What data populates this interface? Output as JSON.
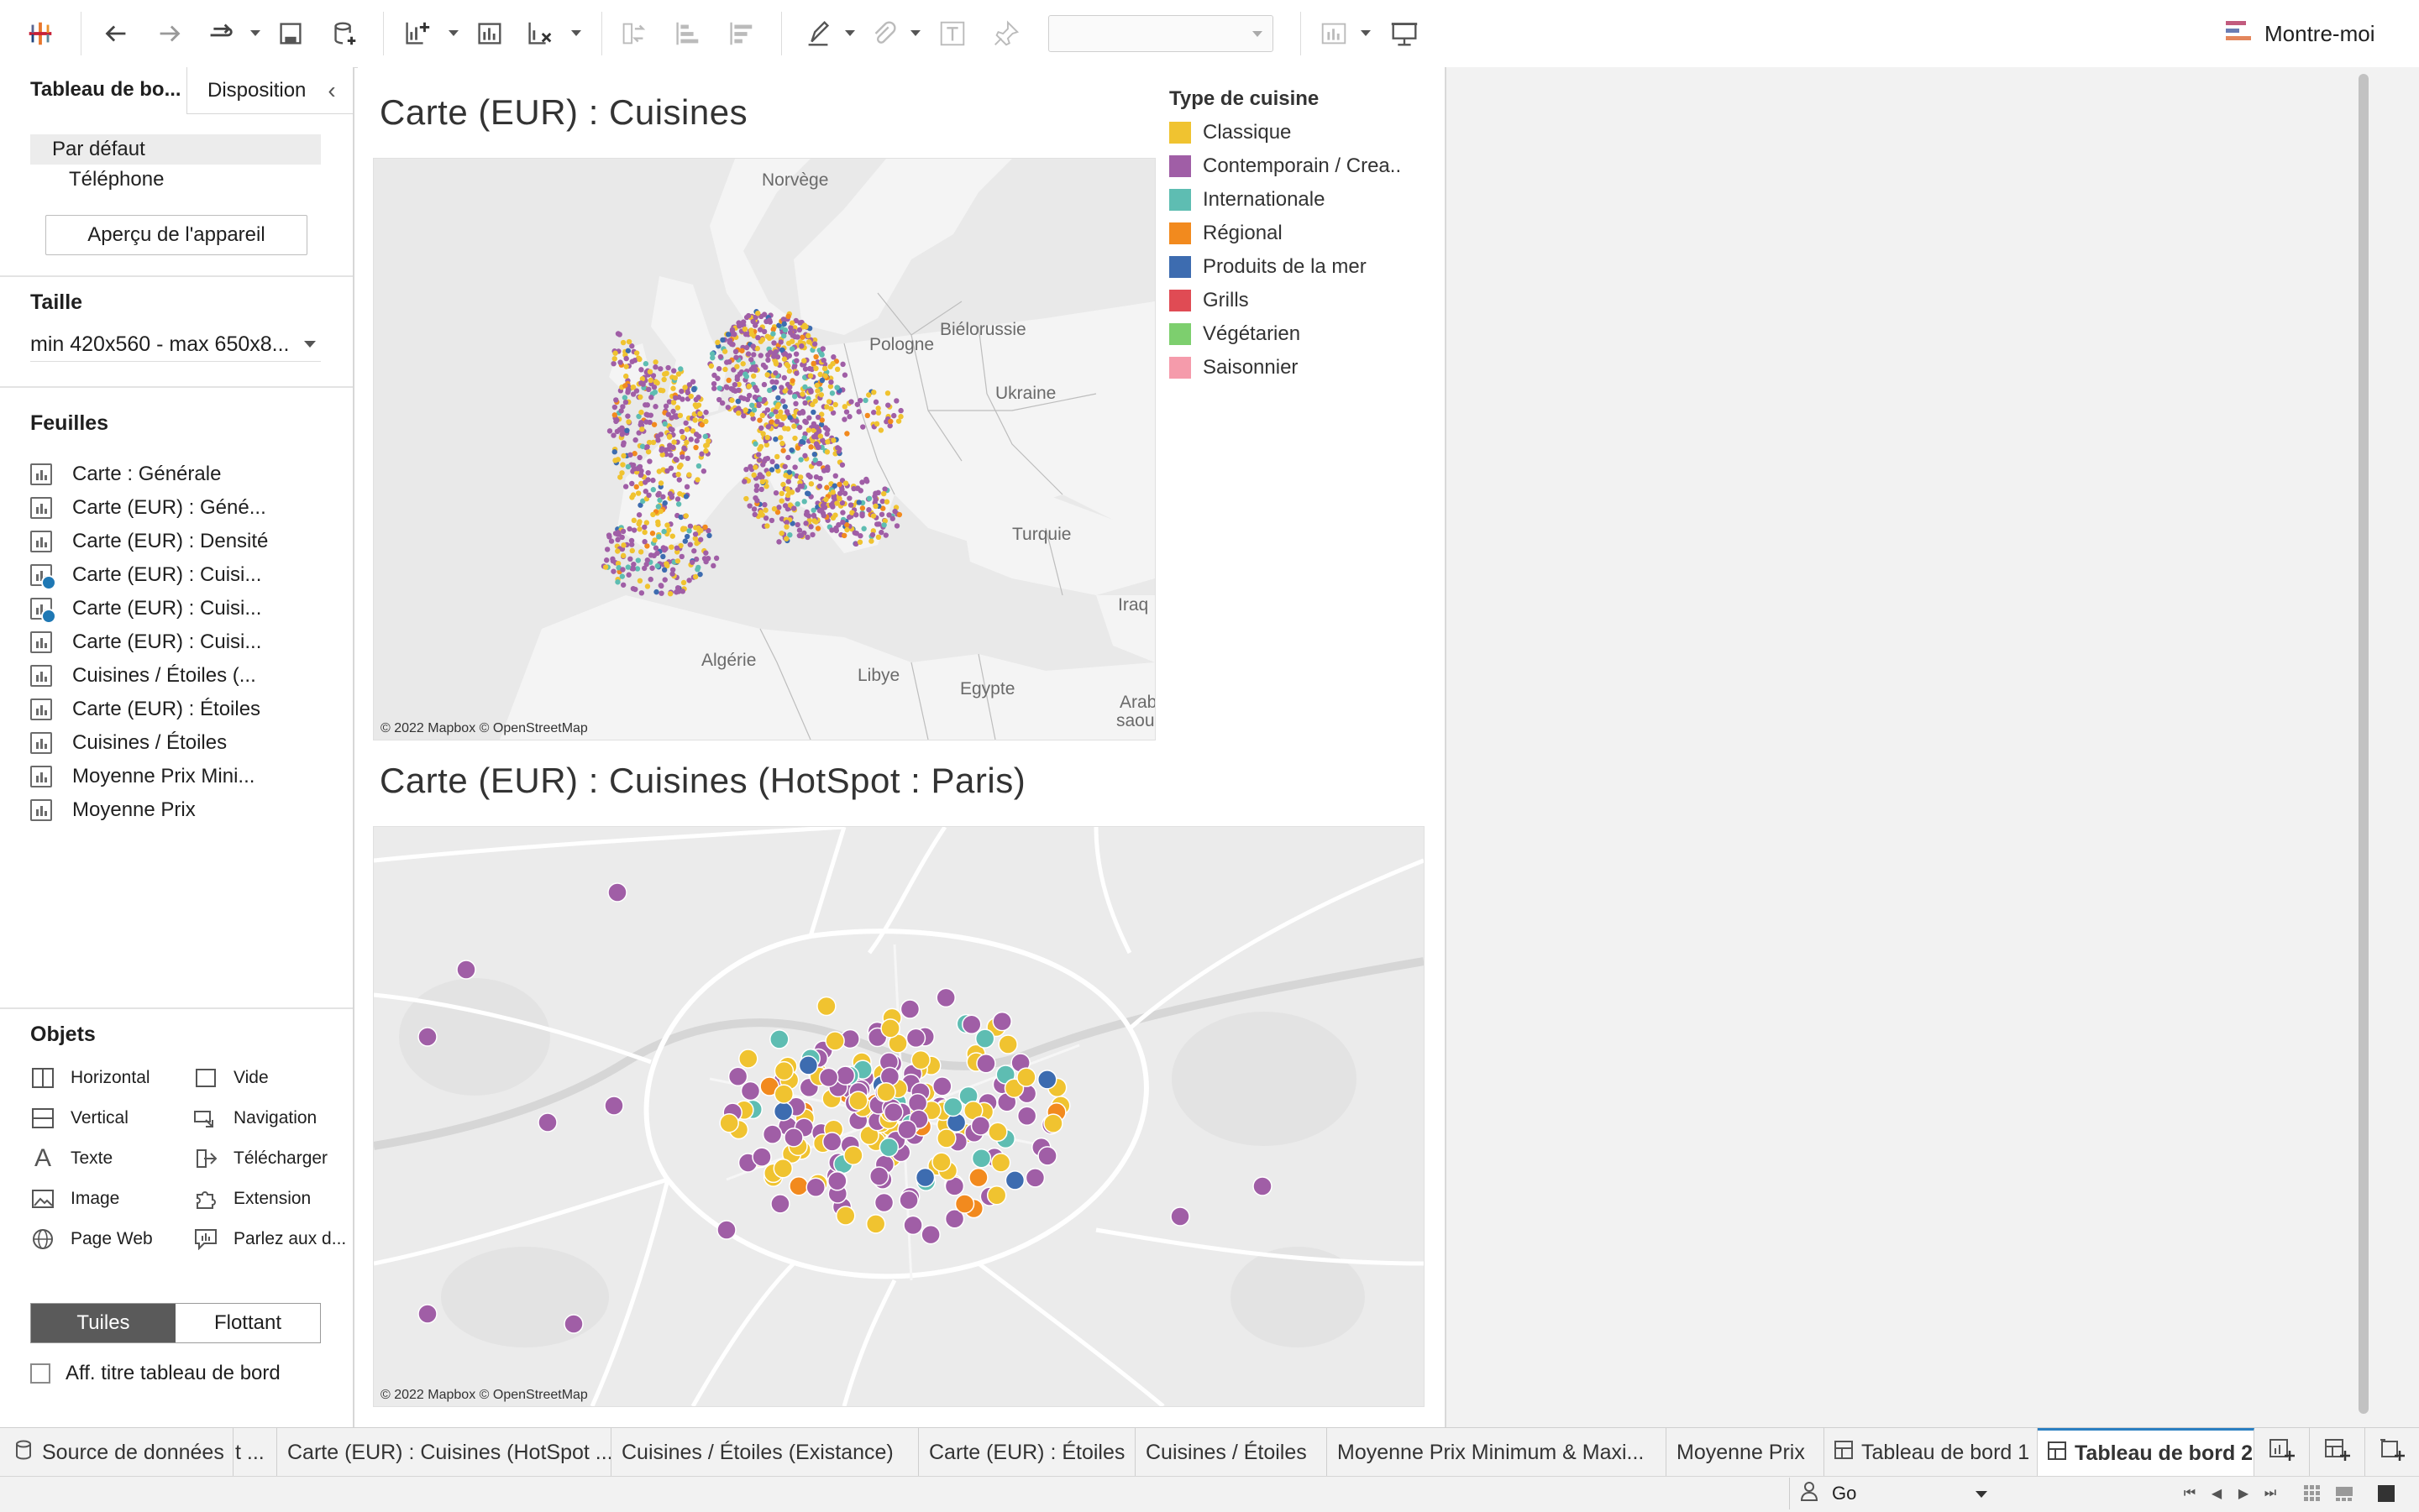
{
  "toolbar": {
    "show_me_label": "Montre-moi",
    "icons": [
      "tableau-logo-icon",
      "undo-icon",
      "redo-icon",
      "replay-icon",
      "save-icon",
      "new-datasource-icon",
      "new-sheet-icon",
      "duplicate-sheet-icon",
      "clear-sheet-icon",
      "swap-icon",
      "sort-asc-icon",
      "sort-desc-icon",
      "highlight-icon",
      "attach-icon",
      "text-label-icon",
      "pin-icon",
      "show-cards-icon",
      "presentation-icon"
    ]
  },
  "left_panel": {
    "tab_dashboard": "Tableau de bo...",
    "tab_layout": "Disposition",
    "devices": [
      {
        "label": "Par défaut",
        "selected": true
      },
      {
        "label": "Téléphone",
        "selected": false
      }
    ],
    "device_preview_button": "Aperçu de l'appareil",
    "size_title": "Taille",
    "size_value": "min 420x560 - max 650x8...",
    "sheets_title": "Feuilles",
    "sheets": [
      {
        "label": "Carte : Générale",
        "used": false
      },
      {
        "label": "Carte (EUR) : Géné...",
        "used": false
      },
      {
        "label": "Carte (EUR) : Densité",
        "used": false
      },
      {
        "label": "Carte (EUR) : Cuisi...",
        "used": true
      },
      {
        "label": "Carte (EUR) : Cuisi...",
        "used": true
      },
      {
        "label": "Carte (EUR) : Cuisi...",
        "used": false
      },
      {
        "label": "Cuisines / Étoiles (...",
        "used": false
      },
      {
        "label": "Carte (EUR) : Étoiles",
        "used": false
      },
      {
        "label": "Cuisines / Étoiles",
        "used": false
      },
      {
        "label": "Moyenne Prix Mini...",
        "used": false
      },
      {
        "label": "Moyenne Prix",
        "used": false
      }
    ],
    "objects_title": "Objets",
    "objects": [
      {
        "label": "Horizontal",
        "icon": "horizontal-container-icon"
      },
      {
        "label": "Vide",
        "icon": "blank-icon"
      },
      {
        "label": "Vertical",
        "icon": "vertical-container-icon"
      },
      {
        "label": "Navigation",
        "icon": "navigation-icon"
      },
      {
        "label": "Texte",
        "icon": "text-icon"
      },
      {
        "label": "Télécharger",
        "icon": "download-icon"
      },
      {
        "label": "Image",
        "icon": "image-icon"
      },
      {
        "label": "Extension",
        "icon": "extension-icon"
      },
      {
        "label": "Page Web",
        "icon": "web-page-icon"
      },
      {
        "label": "Parlez aux d...",
        "icon": "ask-data-icon"
      }
    ],
    "tiled_label": "Tuiles",
    "floating_label": "Flottant",
    "show_title_label": "Aff. titre tableau de bord"
  },
  "dashboard": {
    "map1_title": "Carte (EUR) : Cuisines",
    "map2_title": "Carte (EUR) : Cuisines (HotSpot : Paris)",
    "map_copyright": "© 2022 Mapbox © OpenStreetMap",
    "countries": {
      "norway": "Norvège",
      "belarus": "Biélorussie",
      "poland": "Pologne",
      "ukraine": "Ukraine",
      "turkey": "Turquie",
      "iraq": "Iraq",
      "algeria": "Algérie",
      "libya": "Libye",
      "egypt": "Egypte",
      "saudi_1": "Arab",
      "saudi_2": "saouc"
    },
    "legend": {
      "title": "Type de cuisine",
      "items": [
        {
          "label": "Classique",
          "color": "#f0c330"
        },
        {
          "label": "Contemporain / Crea..",
          "color": "#a05ea6"
        },
        {
          "label": "Internationale",
          "color": "#5ebdb2"
        },
        {
          "label": "Régional",
          "color": "#f28a1e"
        },
        {
          "label": "Produits de la mer",
          "color": "#3d6cb0"
        },
        {
          "label": "Grills",
          "color": "#e04b54"
        },
        {
          "label": "Végétarien",
          "color": "#7dcf6e"
        },
        {
          "label": "Saisonnier",
          "color": "#f59bab"
        }
      ]
    }
  },
  "bottom_tabs": [
    {
      "label": "Source de données",
      "type": "datasource",
      "active": false
    },
    {
      "label": "t ...",
      "type": "sheet",
      "active": false
    },
    {
      "label": "Carte (EUR) : Cuisines (HotSpot ...",
      "type": "sheet",
      "active": false
    },
    {
      "label": "Cuisines / Étoiles (Existance)",
      "type": "sheet",
      "active": false
    },
    {
      "label": "Carte (EUR) : Étoiles",
      "type": "sheet",
      "active": false
    },
    {
      "label": "Cuisines / Étoiles",
      "type": "sheet",
      "active": false
    },
    {
      "label": "Moyenne Prix Minimum & Maxi...",
      "type": "sheet",
      "active": false
    },
    {
      "label": "Moyenne Prix",
      "type": "sheet",
      "active": false
    },
    {
      "label": "Tableau de bord 1",
      "type": "dashboard",
      "active": false
    },
    {
      "label": "Tableau de bord 2",
      "type": "dashboard",
      "active": true
    }
  ],
  "status_bar": {
    "user_filter_value": "Go"
  }
}
